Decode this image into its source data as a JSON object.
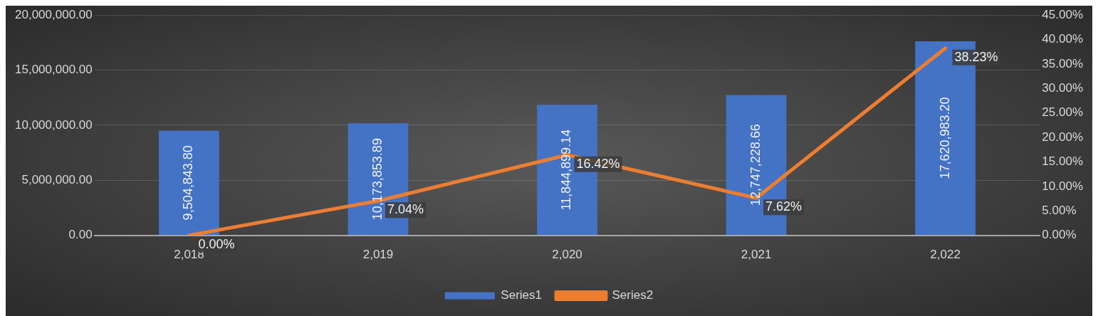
{
  "chart_data": {
    "type": "bar",
    "categories": [
      "2,018",
      "2,019",
      "2,020",
      "2,021",
      "2,022"
    ],
    "series": [
      {
        "name": "Series1",
        "color": "#4472c4",
        "values": [
          9504843.8,
          10173853.89,
          11844899.14,
          12747228.66,
          17620983.2
        ],
        "value_labels": [
          "9,504,843.80",
          "10,173,853.89",
          "11,844,899.14",
          "12,747,228.66",
          "17,620,983.20"
        ]
      },
      {
        "name": "Series2",
        "type": "line",
        "axis": "y2",
        "color": "#ed7d31",
        "values": [
          0.0,
          7.04,
          16.42,
          7.62,
          38.23
        ],
        "value_labels": [
          "0.00%",
          "7.04%",
          "16.42%",
          "7.62%",
          "38.23%"
        ]
      }
    ],
    "ylim": [
      0,
      20000000
    ],
    "yticks": [
      {
        "value": 0,
        "label": "0.00"
      },
      {
        "value": 5000000,
        "label": "5,000,000.00"
      },
      {
        "value": 10000000,
        "label": "10,000,000.00"
      },
      {
        "value": 15000000,
        "label": "15,000,000.00"
      },
      {
        "value": 20000000,
        "label": "20,000,000.00"
      }
    ],
    "y2lim": [
      0,
      45
    ],
    "y2ticks": [
      {
        "value": 0,
        "label": "0.00%"
      },
      {
        "value": 5,
        "label": "5.00%"
      },
      {
        "value": 10,
        "label": "10.00%"
      },
      {
        "value": 15,
        "label": "15.00%"
      },
      {
        "value": 20,
        "label": "20.00%"
      },
      {
        "value": 25,
        "label": "25.00%"
      },
      {
        "value": 30,
        "label": "30.00%"
      },
      {
        "value": 35,
        "label": "35.00%"
      },
      {
        "value": 40,
        "label": "40.00%"
      },
      {
        "value": 45,
        "label": "45.00%"
      }
    ],
    "grid": "y",
    "legend": "bottom",
    "marker": "none",
    "line_style": "solid"
  }
}
